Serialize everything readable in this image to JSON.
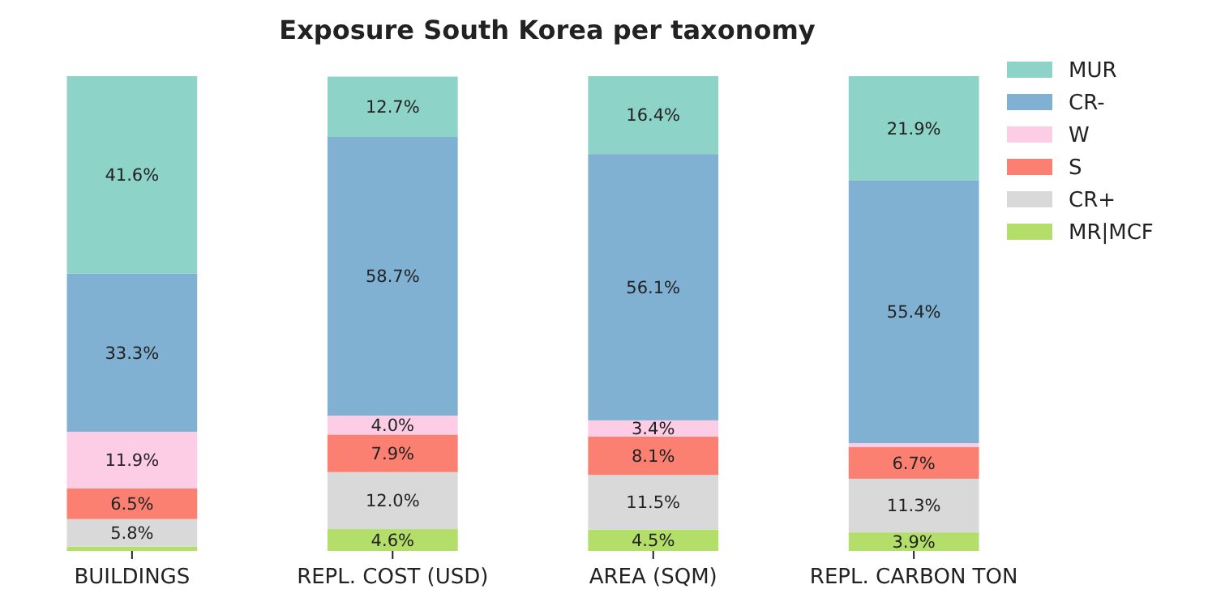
{
  "chart_data": {
    "type": "bar",
    "title": "Exposure South Korea per taxonomy",
    "categories": [
      "BUILDINGS",
      "REPL. COST (USD)",
      "AREA (SQM)",
      "REPL. CARBON TON"
    ],
    "stacked": true,
    "ylim": [
      0,
      100
    ],
    "tick_labels": "x",
    "legend": "top right",
    "series": [
      {
        "name": "MR|MCF",
        "color": "#b3de69",
        "values": [
          0.9,
          4.6,
          4.5,
          3.9
        ],
        "value_labels": [
          null,
          "4.6%",
          "4.5%",
          "3.9%"
        ]
      },
      {
        "name": "CR+",
        "color": "#d9d9d9",
        "values": [
          5.8,
          12.0,
          11.5,
          11.3
        ],
        "value_labels": [
          "5.8%",
          "12.0%",
          "11.5%",
          "11.3%"
        ]
      },
      {
        "name": "S",
        "color": "#fb8072",
        "values": [
          6.5,
          7.9,
          8.1,
          6.7
        ],
        "value_labels": [
          "6.5%",
          "7.9%",
          "8.1%",
          "6.7%"
        ]
      },
      {
        "name": "W",
        "color": "#fccde5",
        "values": [
          11.9,
          4.0,
          3.4,
          0.8
        ],
        "value_labels": [
          "11.9%",
          "4.0%",
          "3.4%",
          null
        ]
      },
      {
        "name": "CR-",
        "color": "#80b1d3",
        "values": [
          33.3,
          58.7,
          56.1,
          55.4
        ],
        "value_labels": [
          "33.3%",
          "58.7%",
          "56.1%",
          "55.4%"
        ]
      },
      {
        "name": "MUR",
        "color": "#8dd3c7",
        "values": [
          41.6,
          12.7,
          16.4,
          21.9
        ],
        "value_labels": [
          "41.6%",
          "12.7%",
          "16.4%",
          "21.9%"
        ]
      }
    ]
  }
}
